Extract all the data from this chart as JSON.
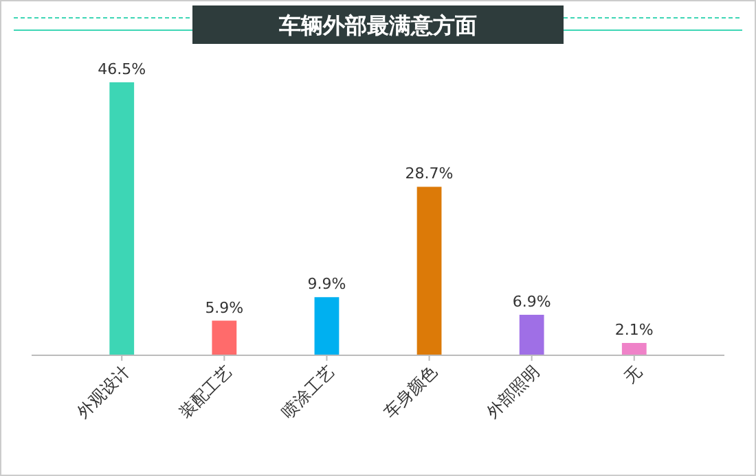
{
  "chart_data": {
    "type": "bar",
    "title": "车辆外部最满意方面",
    "categories": [
      "外观设计",
      "装配工艺",
      "喷涂工艺",
      "车身颜色",
      "外部照明",
      "无"
    ],
    "values": [
      46.5,
      5.9,
      9.9,
      28.7,
      6.9,
      2.1
    ],
    "colors": [
      "#3dd6b5",
      "#ff6b6b",
      "#00b0f0",
      "#dc7a08",
      "#9f6fe6",
      "#ef82c8"
    ],
    "value_labels": [
      "46.5%",
      "5.9%",
      "9.9%",
      "28.7%",
      "6.9%",
      "2.1%"
    ]
  }
}
